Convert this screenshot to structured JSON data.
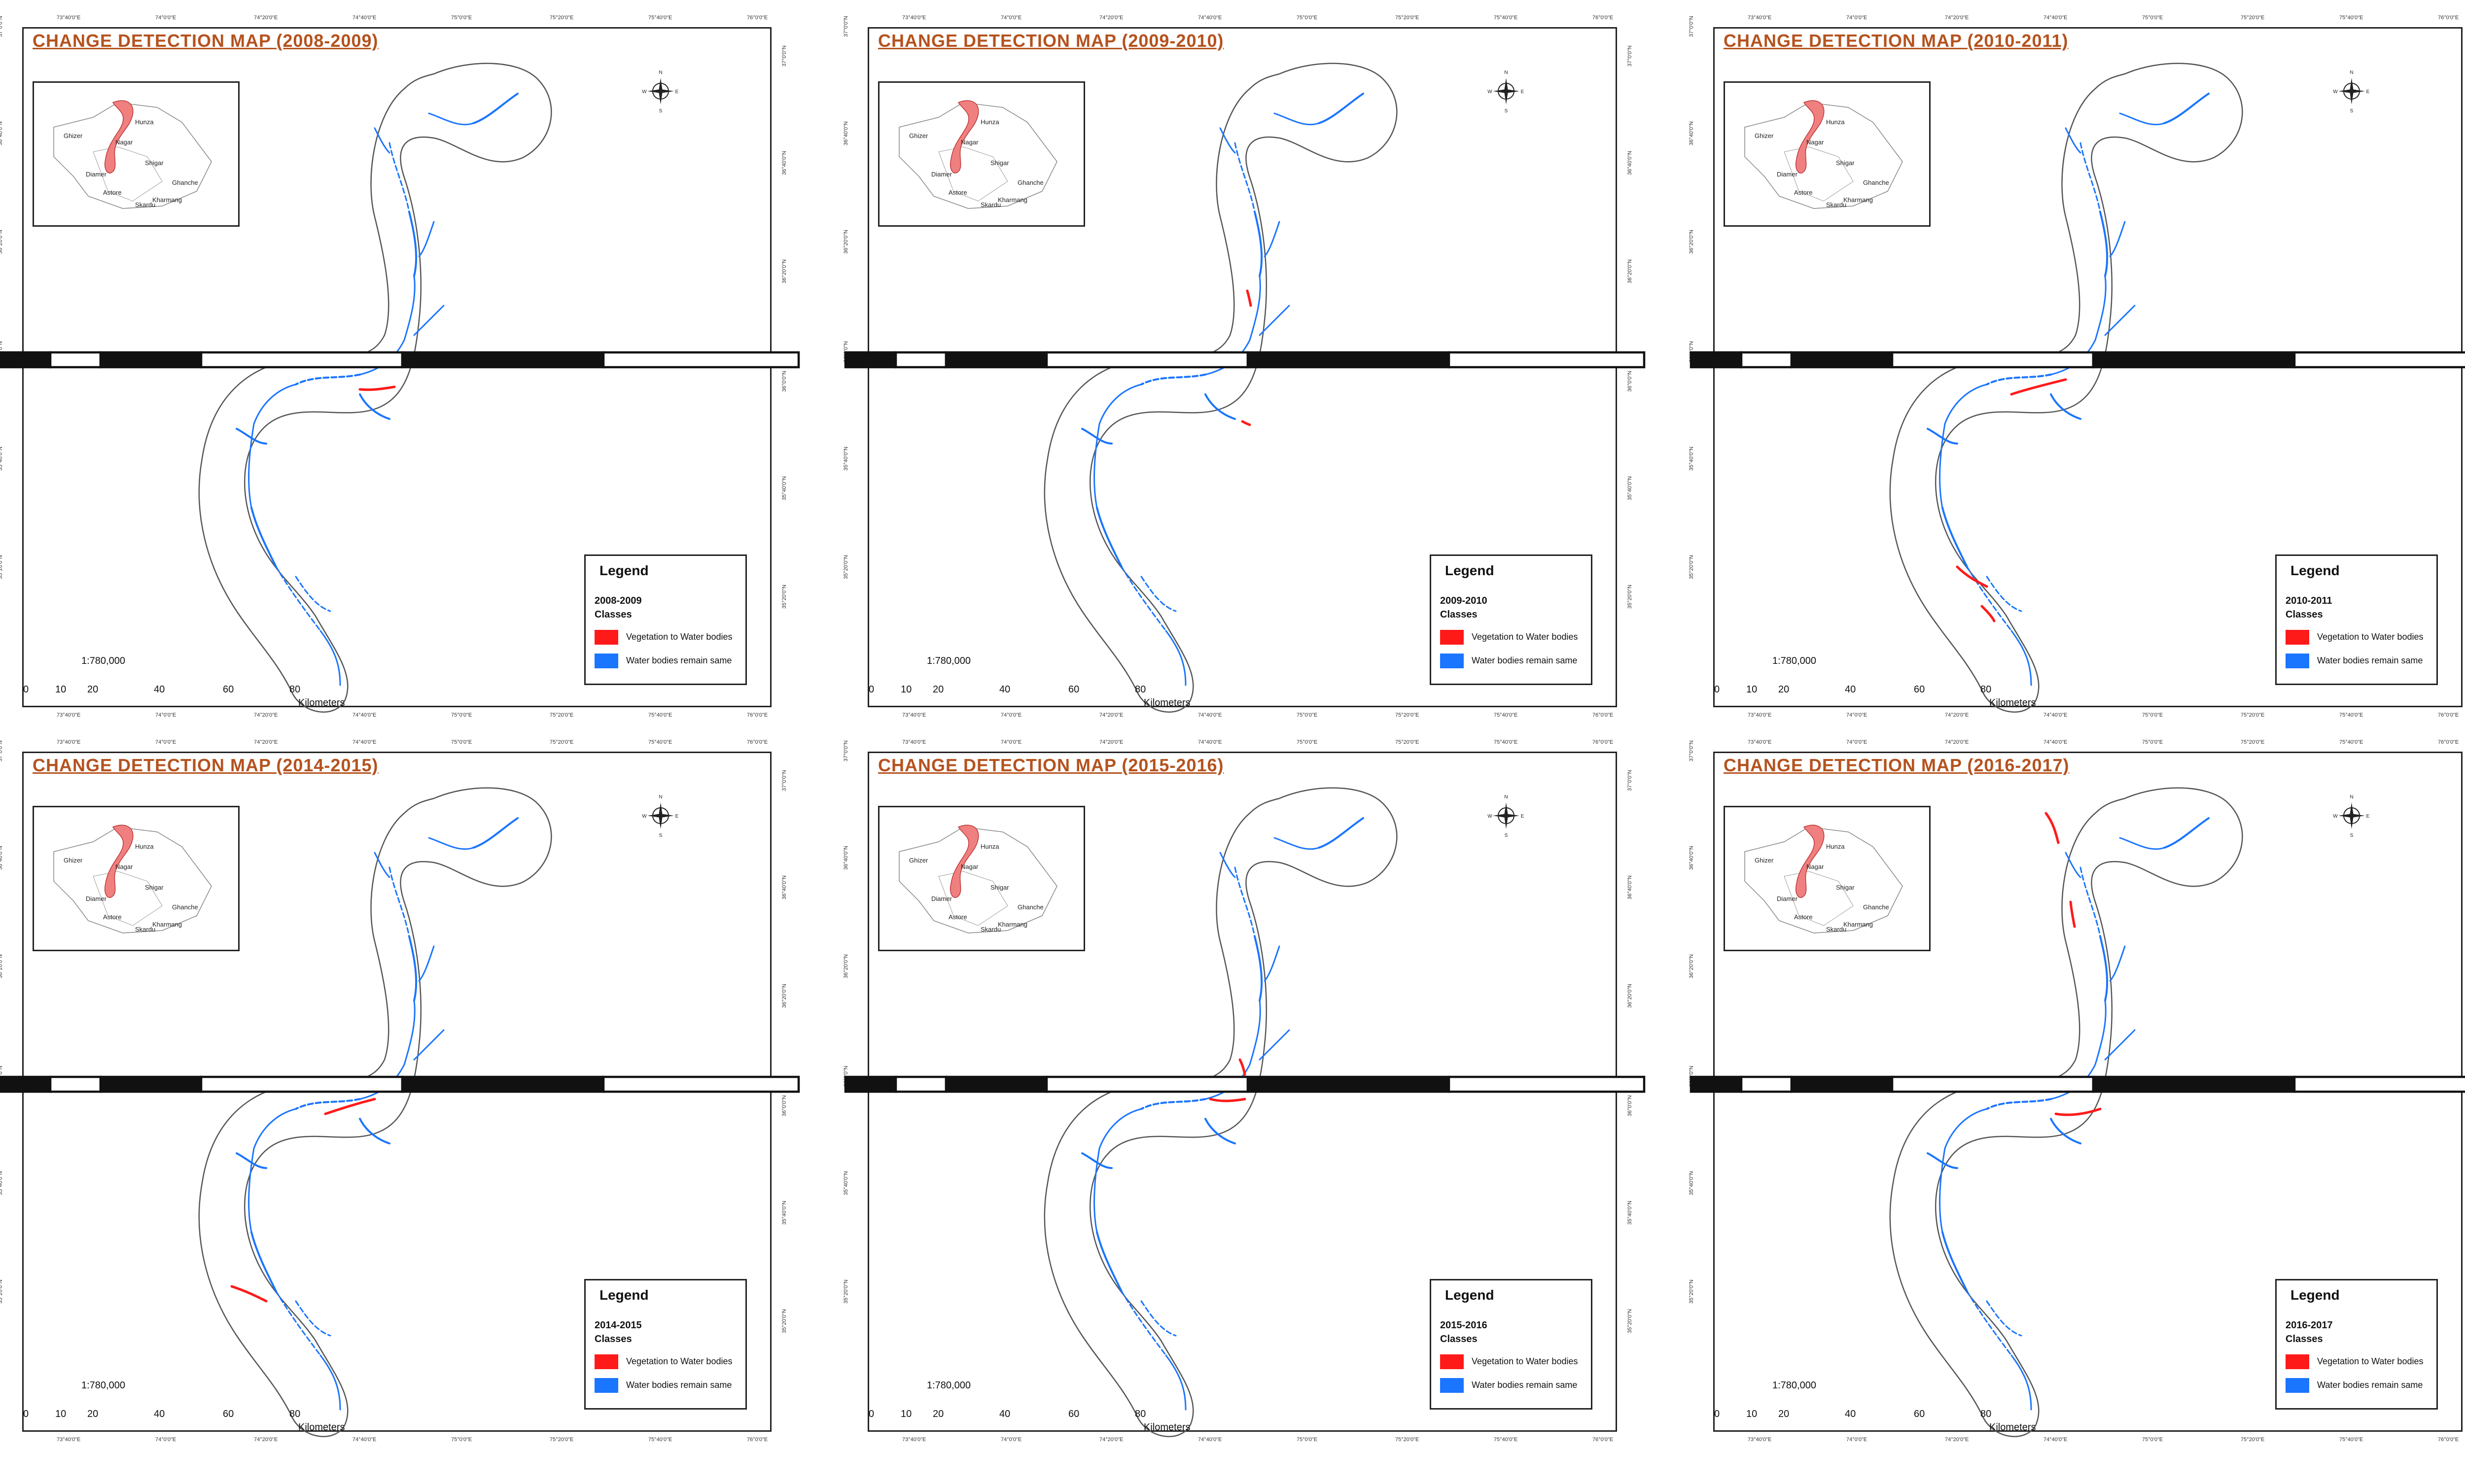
{
  "panels": [
    {
      "title": "CHANGE DETECTION MAP (2008-2009)",
      "year": "2008-2009"
    },
    {
      "title": "CHANGE DETECTION MAP (2009-2010)",
      "year": "2009-2010"
    },
    {
      "title": "CHANGE DETECTION MAP (2010-2011)",
      "year": "2010-2011"
    },
    {
      "title": "CHANGE DETECTION MAP (2014-2015)",
      "year": "2014-2015"
    },
    {
      "title": "CHANGE DETECTION MAP (2015-2016)",
      "year": "2015-2016"
    },
    {
      "title": "CHANGE DETECTION MAP (2016-2017)",
      "year": "2016-2017"
    }
  ],
  "legend": {
    "title": "Legend",
    "classes_label": "Classes",
    "classes": [
      {
        "label": "Vegetation to Water bodies",
        "color": "#ff1a1a"
      },
      {
        "label": "Water bodies remain same",
        "color": "#1a75ff"
      }
    ]
  },
  "scale": {
    "ratio": "1:780,000",
    "ticks": [
      "0",
      "10",
      "20",
      "40",
      "60",
      "80"
    ],
    "unit": "Kilometers"
  },
  "compass": {
    "n": "N",
    "s": "S",
    "e": "E",
    "w": "W"
  },
  "inset": {
    "districts": [
      "Ghizer",
      "Hunza",
      "Nagar",
      "Shigar",
      "Diamer",
      "Astore",
      "Ghanche",
      "Skardu",
      "Kharmang"
    ],
    "highlight_color": "#f08080"
  },
  "graticule": {
    "lon_labels": [
      "73°40'0\"E",
      "74°0'0\"E",
      "74°20'0\"E",
      "74°40'0\"E",
      "75°0'0\"E",
      "75°20'0\"E",
      "75°40'0\"E",
      "76°0'0\"E"
    ],
    "lat_labels": [
      "37°0'0\"N",
      "36°40'0\"N",
      "36°20'0\"N",
      "36°0'0\"N",
      "35°40'0\"N",
      "35°20'0\"N"
    ]
  },
  "colors": {
    "title": "#b5521e",
    "water_same": "#1a75ff",
    "veg_to_water": "#ff1a1a",
    "boundary": "#555555"
  }
}
